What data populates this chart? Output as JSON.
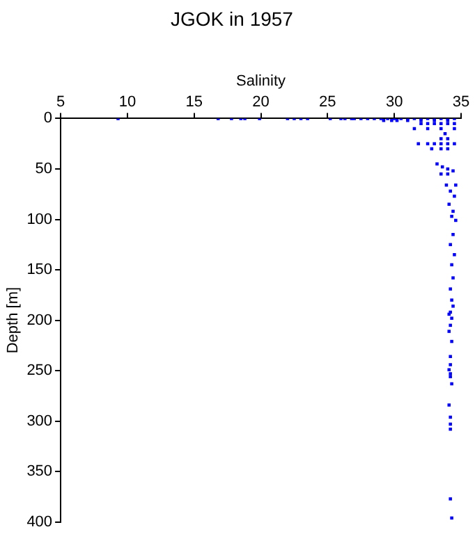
{
  "chart_data": {
    "type": "scatter",
    "title": "JGOK in 1957",
    "xlabel": "Salinity",
    "ylabel": "Depth [m]",
    "xlim": [
      5,
      35
    ],
    "xticks": [
      5,
      10,
      15,
      20,
      25,
      30,
      35
    ],
    "ylim": [
      400,
      0
    ],
    "yticks": [
      0,
      50,
      100,
      150,
      200,
      250,
      300,
      350,
      400
    ],
    "grid": false,
    "legend": false,
    "marker": "square",
    "series": [
      {
        "color": "#0000ff",
        "x": [
          9.3,
          16.8,
          17.8,
          18.5,
          18.8,
          19.9,
          22,
          22.5,
          23,
          23.5,
          25.2,
          26,
          26.3,
          26.8,
          27,
          27.5,
          28,
          28.5,
          29,
          29.5,
          30,
          30.5,
          31,
          31.5,
          32,
          32.5,
          33,
          33.5,
          34,
          34.5,
          29.2,
          29.8,
          30.2,
          31,
          32,
          33,
          34,
          32,
          32.5,
          33,
          33.5,
          34,
          34.5,
          31.5,
          32.5,
          33.5,
          34.5,
          33.8,
          33.5,
          34,
          31.8,
          32.5,
          33,
          33.5,
          34,
          34.5,
          32.8,
          33.5,
          34,
          33.2,
          33.6,
          34,
          34.4,
          33.5,
          34,
          33.9,
          34.6,
          34.2,
          34.5,
          34.1,
          34.4,
          34.3,
          34.6,
          34.4,
          34.2,
          34.5,
          34.3,
          34.4,
          34.2,
          34.3,
          34.1,
          34.4,
          34.2,
          34.3,
          34.2,
          34.1,
          34.3,
          34.2,
          34.2,
          34.1,
          34.2,
          34.2,
          34.3,
          34.1,
          34.2,
          34.2,
          34.2,
          34.2,
          34.3
        ],
        "values": [
          0,
          0,
          0,
          0,
          0,
          0,
          0,
          0,
          0,
          0,
          0,
          0,
          0,
          0,
          0,
          0,
          0,
          0,
          0,
          0,
          0,
          0,
          0,
          0,
          0,
          0,
          0,
          0,
          0,
          0,
          2,
          2,
          2,
          2,
          2,
          2,
          2,
          5,
          5,
          5,
          5,
          5,
          5,
          10,
          10,
          10,
          10,
          15,
          20,
          20,
          25,
          25,
          25,
          25,
          25,
          25,
          30,
          30,
          30,
          45,
          48,
          50,
          52,
          55,
          55,
          66,
          66,
          72,
          77,
          85,
          92,
          97,
          101,
          115,
          125,
          135,
          145,
          158,
          169,
          180,
          194,
          186,
          192,
          198,
          205,
          211,
          221,
          236,
          244,
          249,
          253,
          256,
          263,
          284,
          296,
          303,
          308,
          377,
          396
        ]
      }
    ]
  }
}
